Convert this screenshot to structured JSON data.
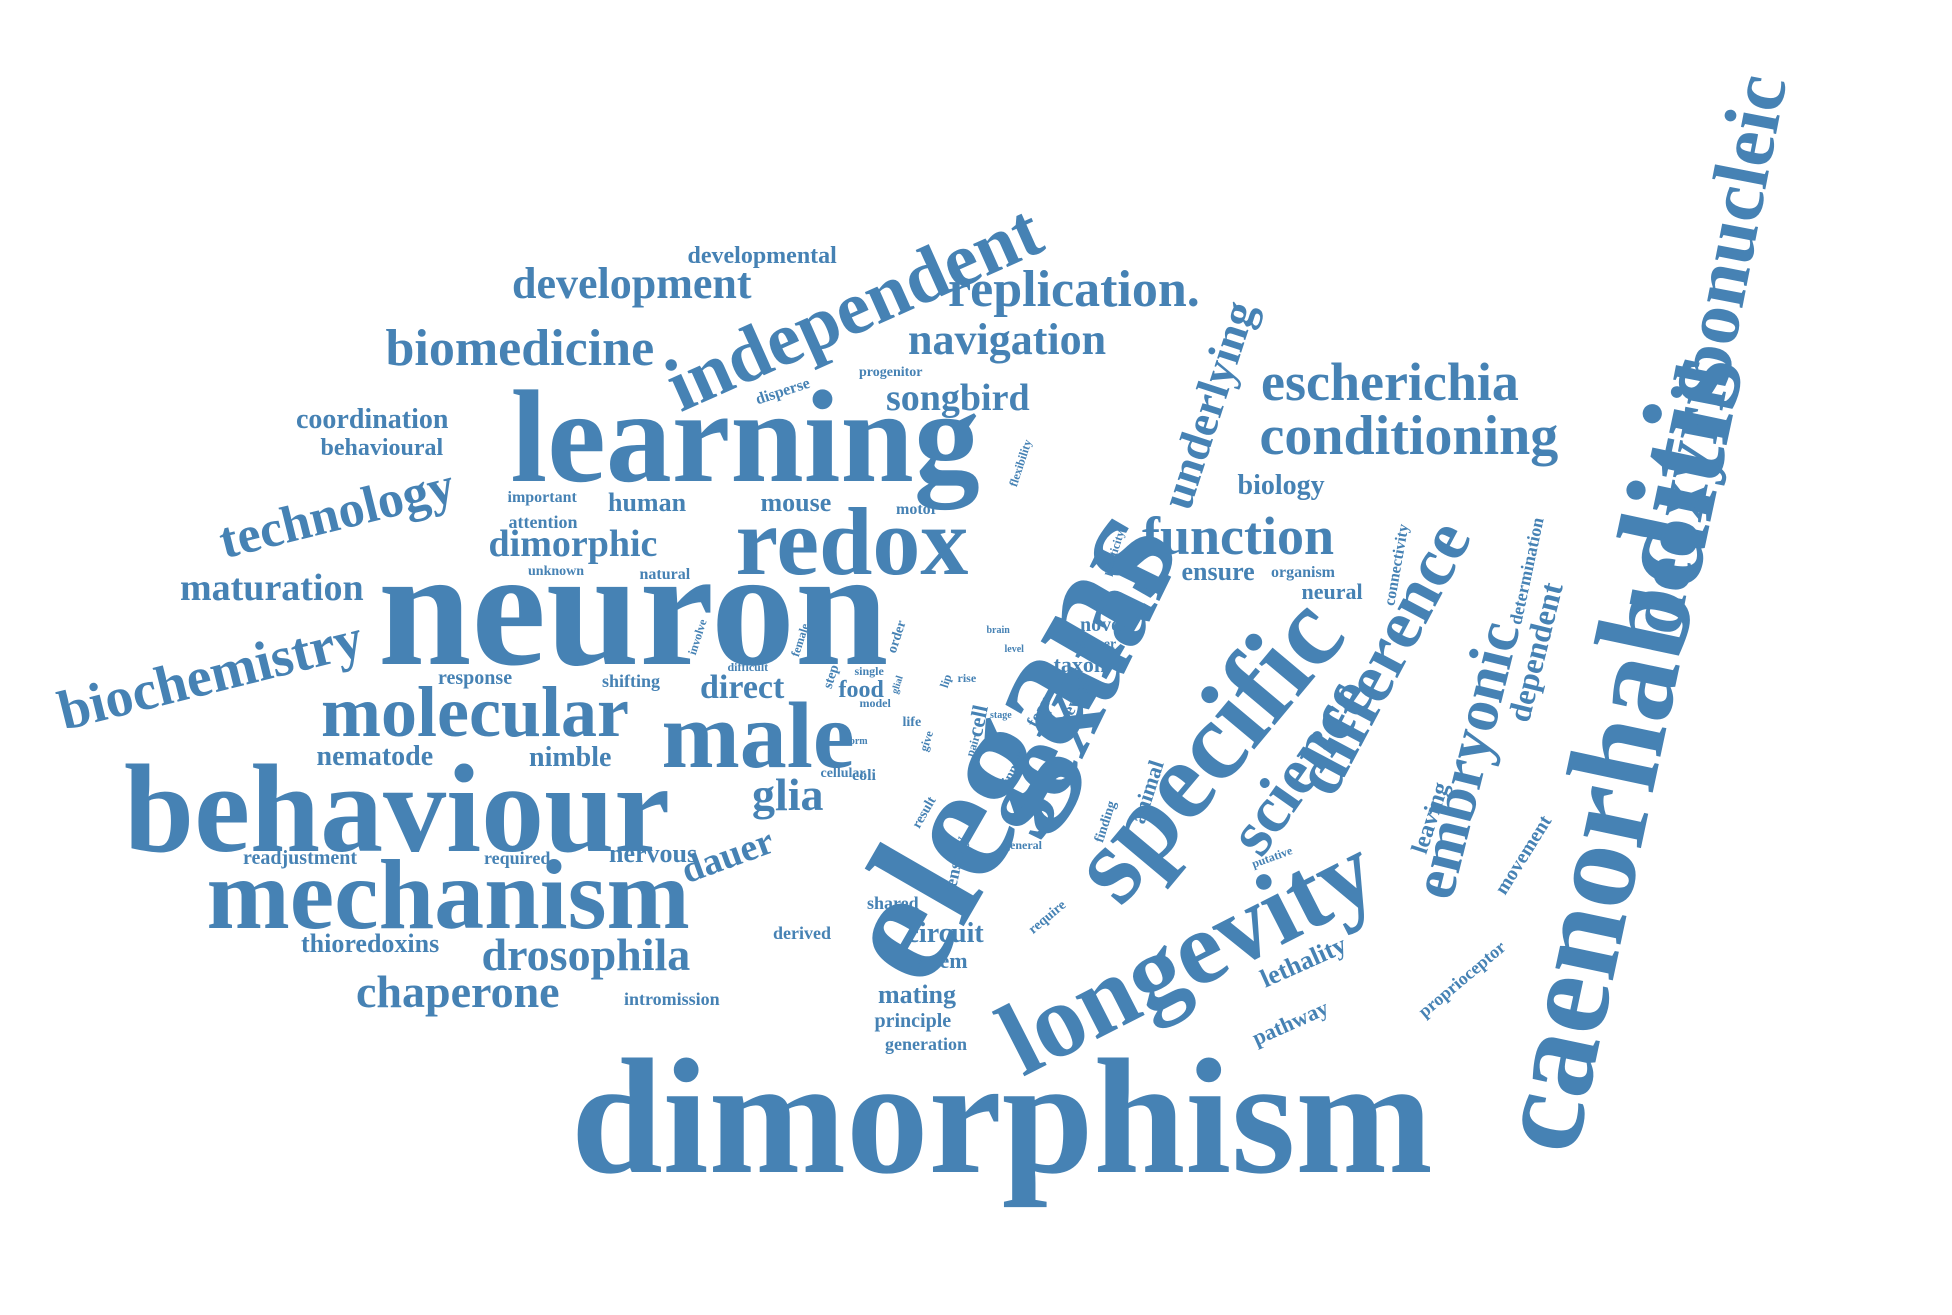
{
  "cloud": {
    "color": "#4682B4",
    "words": [
      "dimorphism",
      "caenorhabditis",
      "elegans",
      "neuron",
      "behaviour",
      "learning",
      "sexual",
      "specific",
      "longevity",
      "mechanism",
      "deoxyribonucleic",
      "redox",
      "independent",
      "male",
      "molecular",
      "difference",
      "science",
      "embryonic",
      "biochemistry",
      "technology",
      "conditioning",
      "function",
      "escherichia",
      "underlying",
      "biomedicine",
      "replication.",
      "navigation",
      "development",
      "maturation",
      "dimorphic",
      "drosophila",
      "chaperone",
      "songbird",
      "glia",
      "dependent",
      "developmental",
      "coordination",
      "behavioural",
      "human",
      "mouse",
      "biology",
      "ensure",
      "neural",
      "leaving",
      "lethality",
      "pathway",
      "proprioceptor",
      "movement",
      "determination",
      "connectivity",
      "organism",
      "nematode",
      "nimble",
      "dauer",
      "direct",
      "response",
      "shifting",
      "food",
      "circuit",
      "system",
      "mating",
      "principle",
      "generation",
      "intromission",
      "derived",
      "thioredoxins",
      "readjustment",
      "required",
      "nervous",
      "shared",
      "sensory",
      "animal",
      "finding",
      "putative",
      "general",
      "require",
      "innate",
      "fear",
      "reveal",
      "taxon",
      "manner",
      "novel",
      "plasticity",
      "flexibility",
      "motor",
      "progenitor",
      "disperse",
      "important",
      "attention",
      "unknown",
      "natural",
      "involve",
      "female",
      "difficult",
      "single",
      "step",
      "order",
      "glial",
      "model",
      "form",
      "life",
      "give",
      "result",
      "cellular",
      "coli",
      "pair",
      "stage",
      "level",
      "brain",
      "lip",
      "rise",
      "cell"
    ]
  }
}
